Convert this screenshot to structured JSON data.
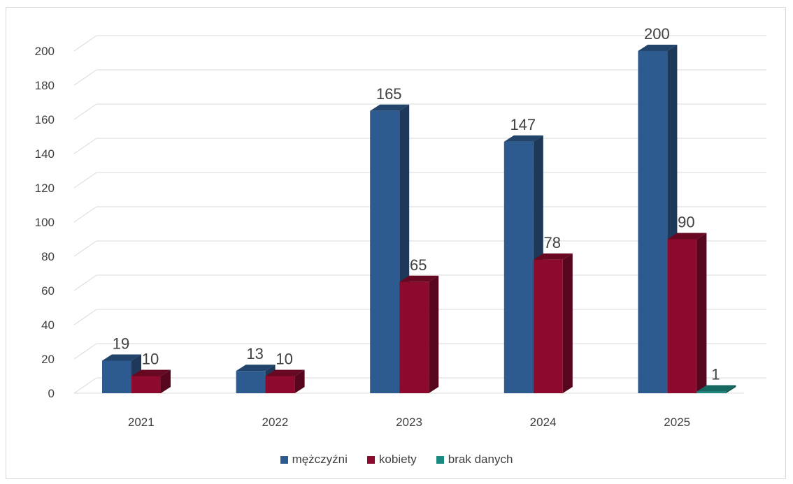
{
  "chart_data": {
    "type": "bar",
    "title": "",
    "xlabel": "",
    "ylabel": "",
    "categories": [
      "2021",
      "2022",
      "2023",
      "2024",
      "2025"
    ],
    "series": [
      {
        "name": "mężczyźni",
        "values": [
          19,
          13,
          165,
          147,
          200
        ],
        "color": "#2e5b8f"
      },
      {
        "name": "kobiety",
        "values": [
          10,
          10,
          65,
          78,
          90
        ],
        "color": "#8b0a2e"
      },
      {
        "name": "brak danych",
        "values": [
          null,
          null,
          null,
          null,
          1
        ],
        "color": "#1a8a80"
      }
    ],
    "ylim": [
      0,
      200
    ],
    "yticks": [
      "0",
      "20",
      "40",
      "60",
      "80",
      "100",
      "120",
      "140",
      "160",
      "180",
      "200"
    ],
    "grid": true,
    "legend_position": "bottom",
    "style": "3d-column"
  }
}
